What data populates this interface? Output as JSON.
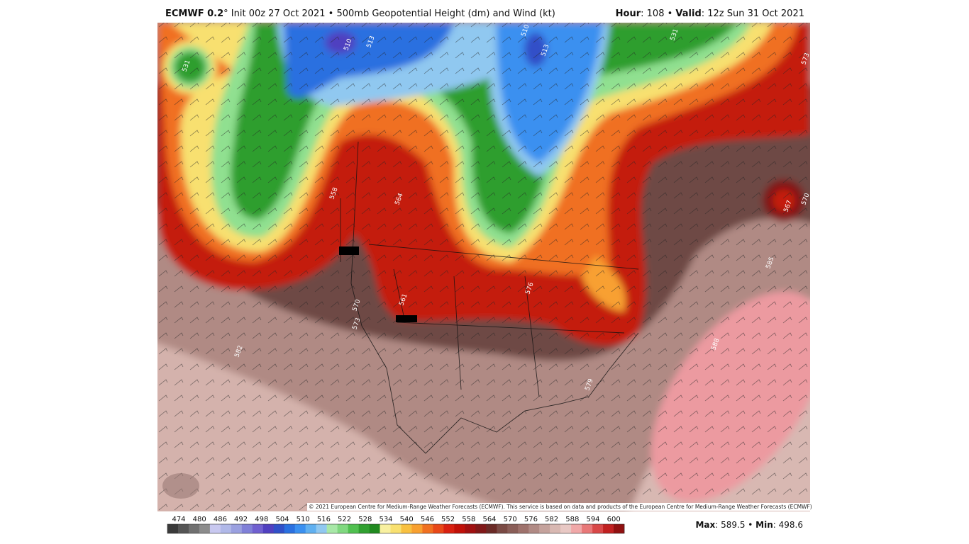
{
  "header": {
    "model": "ECMWF 0.2",
    "title_rest": "° Init 00z 27 Oct 2021 • 500mb Geopotential Height (dm) and Wind (kt)",
    "hour_label": "Hour",
    "hour_rest": ": 108 • ",
    "valid_label": "Valid",
    "valid_rest": ": 12z Sun 31 Oct 2021"
  },
  "map": {
    "contour_labels": [
      "510",
      "513",
      "510",
      "513",
      "531",
      "531",
      "564",
      "558",
      "570",
      "573",
      "582",
      "585",
      "588",
      "567",
      "570",
      "573",
      "576",
      "579",
      "561"
    ],
    "copyright": "© 2021 European Centre for Medium-Range Weather Forecasts (ECMWF). This service is based on data and products of the European Centre for Medium-Range Weather Forecasts (ECMWF)."
  },
  "colorbar": {
    "labels": [
      "474",
      "480",
      "486",
      "492",
      "498",
      "504",
      "510",
      "516",
      "522",
      "528",
      "534",
      "540",
      "546",
      "552",
      "558",
      "564",
      "570",
      "576",
      "582",
      "588",
      "594",
      "600"
    ],
    "colors": [
      "#3a3a3a",
      "#555555",
      "#707070",
      "#8c8c8c",
      "#c8c8f0",
      "#b0b8e8",
      "#9aa0e0",
      "#8080d8",
      "#7060d0",
      "#5040c0",
      "#3050c8",
      "#2a70e0",
      "#3a90f0",
      "#60b0f0",
      "#90c8f0",
      "#a8e8a8",
      "#80d880",
      "#50c050",
      "#30a030",
      "#208a20",
      "#f8f0a0",
      "#f8e070",
      "#f8c040",
      "#f8a030",
      "#f07020",
      "#e84818",
      "#d82010",
      "#c01008",
      "#a01010",
      "#801818",
      "#6a2a26",
      "#7a4a44",
      "#8a5e58",
      "#9e726c",
      "#b08a84",
      "#c4a29c",
      "#d8b8b2",
      "#e8c8c4",
      "#f0a8a8",
      "#e87878",
      "#d84848",
      "#c02020",
      "#901010"
    ]
  },
  "footer": {
    "max_label": "Max",
    "max_rest": ": 589.5 • ",
    "min_label": "Min",
    "min_rest": ": 498.6"
  }
}
